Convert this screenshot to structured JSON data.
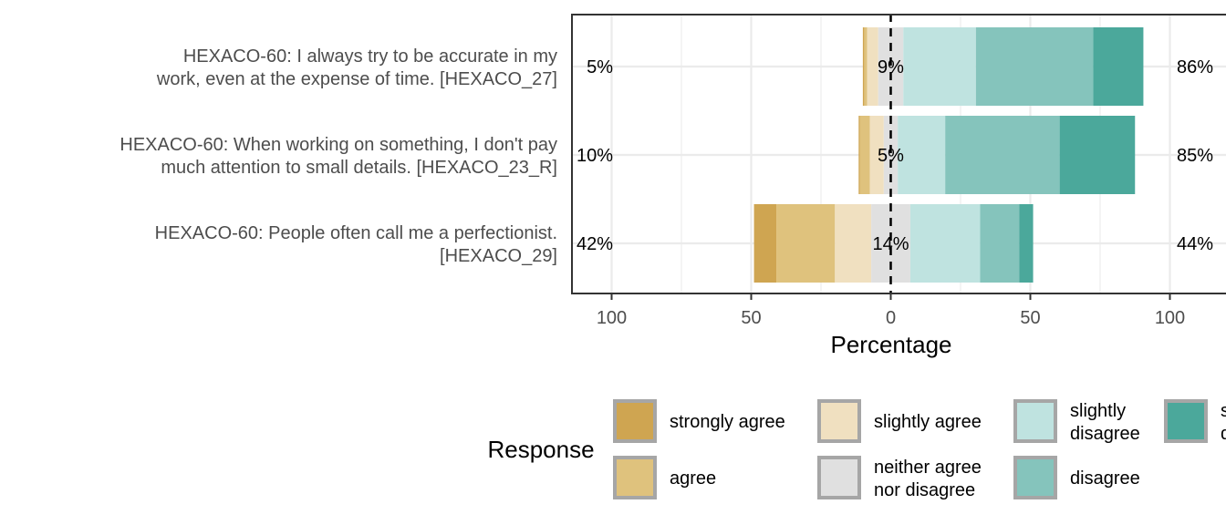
{
  "chart_data": {
    "type": "bar",
    "orientation": "horizontal-diverging-stacked",
    "xlabel": "Percentage",
    "ylabel": "",
    "xlim": [
      -100,
      100
    ],
    "x_ticks": [
      -100,
      -50,
      0,
      50,
      100
    ],
    "x_tick_labels": [
      "100",
      "50",
      "0",
      "50",
      "100"
    ],
    "grid": true,
    "legend_position": "bottom",
    "legend_title": "Response",
    "categories": [
      "HEXACO-60: I always try to be accurate in my\nwork, even at the expense of time. [HEXACO_27]",
      "HEXACO-60: When working on something, I don't pay\nmuch attention to small details. [HEXACO_23_R]",
      "HEXACO-60: People often call me a perfectionist.\n[HEXACO_29]"
    ],
    "series": [
      {
        "name": "strongly agree",
        "color": "#CFA551",
        "values": [
          0.5,
          0.5,
          8
        ]
      },
      {
        "name": "agree",
        "color": "#DFC27D",
        "values": [
          1,
          3.5,
          21
        ]
      },
      {
        "name": "slightly agree",
        "color": "#F0E0C0",
        "values": [
          4,
          5,
          13
        ]
      },
      {
        "name": "neither agree\nnor disagree",
        "color": "#E0E0E0",
        "values": [
          9,
          5,
          14
        ]
      },
      {
        "name": "slightly\ndisagree",
        "color": "#BFE3E0",
        "values": [
          26,
          17,
          25
        ]
      },
      {
        "name": "disagree",
        "color": "#85C4BC",
        "values": [
          42,
          41,
          14
        ]
      },
      {
        "name": "strongly\ndisagree",
        "color": "#4BA89B",
        "values": [
          18,
          27,
          5
        ]
      }
    ],
    "left_labels": [
      "5%",
      "10%",
      "42%"
    ],
    "center_labels": [
      "9%",
      "5%",
      "14%"
    ],
    "right_labels": [
      "86%",
      "85%",
      "44%"
    ]
  }
}
